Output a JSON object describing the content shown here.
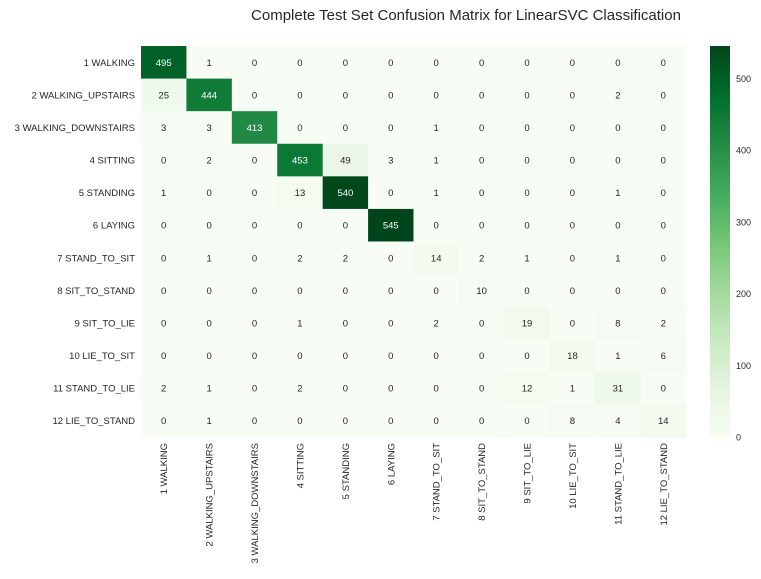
{
  "chart_data": {
    "type": "heatmap",
    "title": "Complete Test Set Confusion Matrix for LinearSVC Classification",
    "labels": [
      "1 WALKING",
      "2 WALKING_UPSTAIRS",
      "3 WALKING_DOWNSTAIRS",
      "4 SITTING",
      "5 STANDING",
      "6 LAYING",
      "7 STAND_TO_SIT",
      "8 SIT_TO_STAND",
      "9 SIT_TO_LIE",
      "10 LIE_TO_SIT",
      "11 STAND_TO_LIE",
      "12 LIE_TO_STAND"
    ],
    "matrix": [
      [
        495,
        1,
        0,
        0,
        0,
        0,
        0,
        0,
        0,
        0,
        0,
        0
      ],
      [
        25,
        444,
        0,
        0,
        0,
        0,
        0,
        0,
        0,
        0,
        2,
        0
      ],
      [
        3,
        3,
        413,
        0,
        0,
        0,
        1,
        0,
        0,
        0,
        0,
        0
      ],
      [
        0,
        2,
        0,
        453,
        49,
        3,
        1,
        0,
        0,
        0,
        0,
        0
      ],
      [
        1,
        0,
        0,
        13,
        540,
        0,
        1,
        0,
        0,
        0,
        1,
        0
      ],
      [
        0,
        0,
        0,
        0,
        0,
        545,
        0,
        0,
        0,
        0,
        0,
        0
      ],
      [
        0,
        1,
        0,
        2,
        2,
        0,
        14,
        2,
        1,
        0,
        1,
        0
      ],
      [
        0,
        0,
        0,
        0,
        0,
        0,
        0,
        10,
        0,
        0,
        0,
        0
      ],
      [
        0,
        0,
        0,
        1,
        0,
        0,
        2,
        0,
        19,
        0,
        8,
        2
      ],
      [
        0,
        0,
        0,
        0,
        0,
        0,
        0,
        0,
        0,
        18,
        1,
        6
      ],
      [
        2,
        1,
        0,
        2,
        0,
        0,
        0,
        0,
        12,
        1,
        31,
        0
      ],
      [
        0,
        1,
        0,
        0,
        0,
        0,
        0,
        0,
        0,
        8,
        4,
        14
      ]
    ],
    "colorbar": {
      "min": 0,
      "max": 545,
      "ticks": [
        0,
        100,
        200,
        300,
        400,
        500
      ],
      "colormap": "Greens",
      "low_color": "#f7fcf5",
      "high_color": "#00441b"
    },
    "annotations": true
  }
}
